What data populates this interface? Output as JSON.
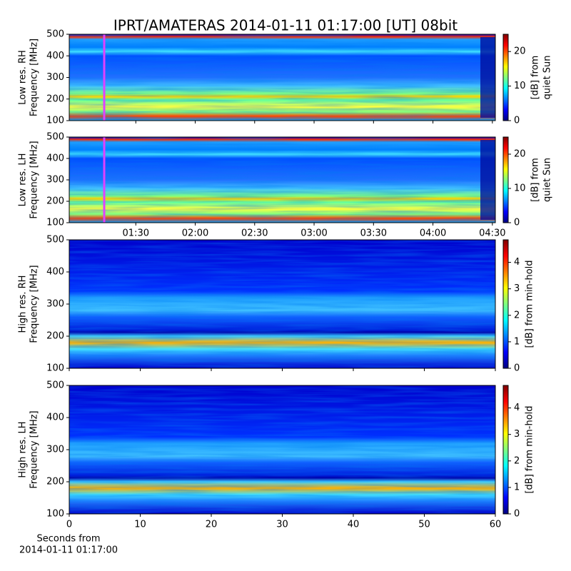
{
  "chart_data": [
    {
      "type": "heatmap",
      "title": "IPRT/AMATERAS 2014-01-11 01:17:00 [UT]   08bit",
      "ylabel": [
        "Low res. RH",
        "Frequency [MHz]"
      ],
      "xlim": [
        0.94,
        4.525
      ],
      "xticks": [
        1.5,
        2,
        2.5,
        3,
        3.5,
        4,
        4.5
      ],
      "xticklabels": false,
      "ylim": [
        100,
        500
      ],
      "yticks": [
        100,
        200,
        300,
        400,
        500
      ],
      "colormap": "jet",
      "clim": [
        0,
        25
      ],
      "cticks": [
        0,
        10,
        20
      ],
      "clabel": [
        "[dB] from",
        "quiet Sun"
      ]
    },
    {
      "type": "heatmap",
      "ylabel": [
        "Low res. LH",
        "Frequency [MHz]"
      ],
      "xlim": [
        0.94,
        4.525
      ],
      "xticks": [
        {
          "value": 1.5,
          "label": "01:30"
        },
        {
          "value": 2,
          "label": "02:00"
        },
        {
          "value": 2.5,
          "label": "02:30"
        },
        {
          "value": 3,
          "label": "03:00"
        },
        {
          "value": 3.5,
          "label": "03:30"
        },
        {
          "value": 4,
          "label": "04:00"
        },
        {
          "value": 4.5,
          "label": "04:30"
        }
      ],
      "ylim": [
        100,
        500
      ],
      "yticks": [
        100,
        200,
        300,
        400,
        500
      ],
      "colormap": "jet",
      "clim": [
        0,
        25
      ],
      "cticks": [
        0,
        10,
        20
      ],
      "clabel": [
        "[dB] from",
        "quiet Sun"
      ]
    },
    {
      "type": "heatmap",
      "ylabel": [
        "High res. RH",
        "Frequency [MHz]"
      ],
      "xlim": [
        0,
        60
      ],
      "xticks": [
        0,
        10,
        20,
        30,
        40,
        50,
        60
      ],
      "xticklabels": false,
      "ylim": [
        100,
        500
      ],
      "yticks": [
        100,
        200,
        300,
        400,
        500
      ],
      "colormap": "jet",
      "clim": [
        0,
        4.85
      ],
      "cticks": [
        0,
        1,
        2,
        3,
        4
      ],
      "clabel": [
        "[dB] from min-hold"
      ]
    },
    {
      "type": "heatmap",
      "ylabel": [
        "High res. LH",
        "Frequency [MHz]"
      ],
      "xlabel": [
        "Seconds from",
        "2014-01-11 01:17:00"
      ],
      "xlim": [
        0,
        60
      ],
      "xticks": [
        0,
        10,
        20,
        30,
        40,
        50,
        60
      ],
      "ylim": [
        100,
        500
      ],
      "yticks": [
        100,
        200,
        300,
        400,
        500
      ],
      "colormap": "jet",
      "clim": [
        0,
        4.85
      ],
      "cticks": [
        0,
        1,
        2,
        3,
        4
      ],
      "clabel": [
        "[dB] from min-hold"
      ]
    }
  ]
}
